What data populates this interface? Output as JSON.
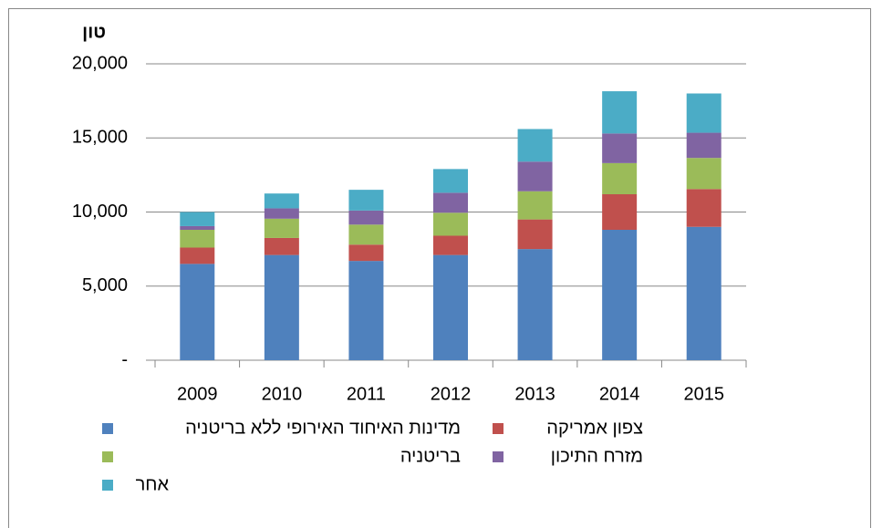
{
  "chart_data": {
    "type": "bar",
    "stacked": true,
    "y_axis_title": "טון",
    "categories": [
      "2009",
      "2010",
      "2011",
      "2012",
      "2013",
      "2014",
      "2015"
    ],
    "series": [
      {
        "name": "מדינות האיחוד האירופי ללא בריטניה",
        "color": "#4f81bd",
        "values": [
          6500,
          7100,
          6700,
          7100,
          7500,
          8800,
          9000
        ]
      },
      {
        "name": "צפון אמריקה",
        "color": "#c0504d",
        "values": [
          1100,
          1150,
          1100,
          1300,
          2000,
          2400,
          2550
        ]
      },
      {
        "name": "בריטניה",
        "color": "#9bbb59",
        "values": [
          1200,
          1300,
          1350,
          1550,
          1900,
          2100,
          2100
        ]
      },
      {
        "name": "מזרח התיכון",
        "color": "#8064a2",
        "values": [
          250,
          700,
          950,
          1350,
          2000,
          2000,
          1700
        ]
      },
      {
        "name": "אחר",
        "color": "#4bacc6",
        "values": [
          950,
          1000,
          1400,
          1600,
          2200,
          2850,
          2650
        ]
      }
    ],
    "ylim": [
      0,
      20000
    ],
    "yticks": [
      {
        "value": 0,
        "label": "-"
      },
      {
        "value": 5000,
        "label": "5,000"
      },
      {
        "value": 10000,
        "label": "10,000"
      },
      {
        "value": 15000,
        "label": "15,000"
      },
      {
        "value": 20000,
        "label": "20,000"
      }
    ],
    "grid": true
  }
}
